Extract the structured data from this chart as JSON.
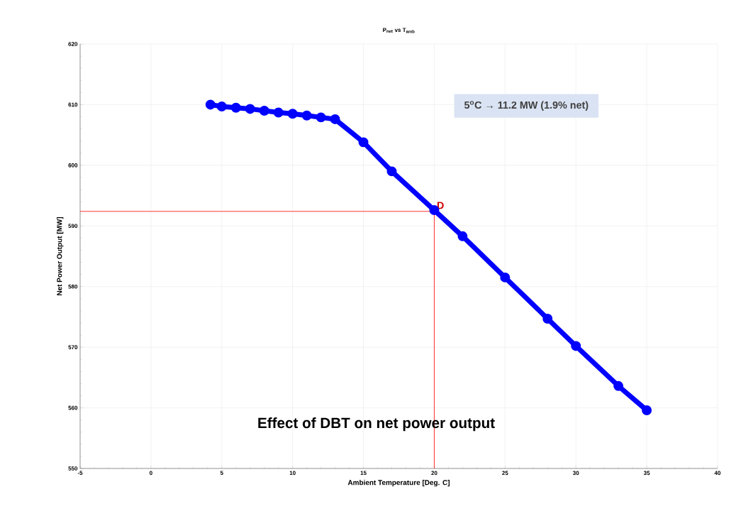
{
  "chart_data": {
    "type": "line",
    "title": "P$_{net}$ vs T$_{amb}$",
    "xlabel": "Ambient Temperature [Deg. C]",
    "ylabel": "Net Power Output [MW]",
    "x": [
      4.2,
      5,
      6,
      7,
      8,
      9,
      10,
      11,
      12,
      13,
      15,
      17,
      20,
      22,
      25,
      28,
      30,
      33,
      35
    ],
    "series": [
      {
        "color": "#0000ff",
        "values": [
          610.0,
          609.7,
          609.5,
          609.3,
          609.0,
          608.7,
          608.5,
          608.2,
          607.9,
          607.6,
          603.8,
          599.0,
          592.6,
          588.3,
          581.5,
          574.7,
          570.2,
          563.6,
          559.6
        ]
      }
    ],
    "xlim": [
      -5,
      40
    ],
    "ylim": [
      550,
      620
    ],
    "xticks": [
      -5,
      0,
      5,
      10,
      15,
      20,
      25,
      30,
      35,
      40
    ],
    "yticks": [
      550,
      560,
      570,
      580,
      590,
      600,
      610,
      620
    ],
    "grid": true,
    "marker": "circle",
    "ref_lines": [
      {
        "axis": "y",
        "value": 592.4,
        "color": "#ff0000"
      },
      {
        "axis": "x",
        "value": 20,
        "color": "#ff0000"
      }
    ],
    "annotations": [
      "5$^{o}$C → 11.2 MW (1.9% net)",
      {
        "text": "D",
        "x": 20,
        "y": 592.4
      },
      "Effect of DBT on net power output"
    ]
  }
}
